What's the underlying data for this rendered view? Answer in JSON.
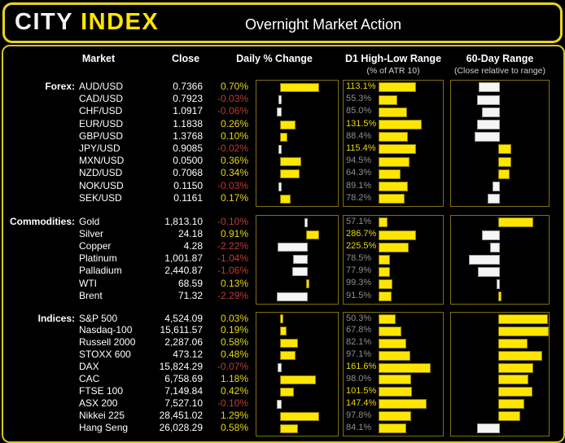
{
  "header": {
    "logo_part1": "CITY",
    "logo_part2": "INDEX",
    "title": "Overnight Market Action"
  },
  "columns": {
    "market": "Market",
    "close": "Close",
    "daily_change": "Daily % Change",
    "d1_range": "D1 High-Low Range",
    "d1_range_sub": "(% of ATR 10)",
    "range60": "60-Day Range",
    "range60_sub": "(Close relative to range)"
  },
  "colors": {
    "accent_yellow": "#ffe600",
    "text_yellow": "#e9d80a",
    "negative_red": "#bf3a34",
    "bar_white": "#f5f5f5",
    "muted_gray": "#8f8f8f",
    "box_border": "#7f7011"
  },
  "chart_data": [
    {
      "type": "bar",
      "group_label": "Forex:",
      "d1_axis_max": 200,
      "rows": [
        {
          "market": "AUD/USD",
          "close": "0.7366",
          "daily_pct": 0.7,
          "d1_atr_pct": 113.1,
          "range60_pct": 30
        },
        {
          "market": "CAD/USD",
          "close": "0.7923",
          "daily_pct": -0.03,
          "d1_atr_pct": 55.3,
          "range60_pct": 28
        },
        {
          "market": "CHF/USD",
          "close": "1.0917",
          "daily_pct": -0.06,
          "d1_atr_pct": 85.0,
          "range60_pct": 33
        },
        {
          "market": "EUR/USD",
          "close": "1.1838",
          "daily_pct": 0.26,
          "d1_atr_pct": 131.5,
          "range60_pct": 28
        },
        {
          "market": "GBP/USD",
          "close": "1.3768",
          "daily_pct": 0.1,
          "d1_atr_pct": 88.4,
          "range60_pct": 26
        },
        {
          "market": "JPY/USD",
          "close": "0.9085",
          "daily_pct": -0.02,
          "d1_atr_pct": 115.4,
          "range60_pct": 62
        },
        {
          "market": "MXN/USD",
          "close": "0.0500",
          "daily_pct": 0.36,
          "d1_atr_pct": 94.5,
          "range60_pct": 62
        },
        {
          "market": "NZD/USD",
          "close": "0.7068",
          "daily_pct": 0.34,
          "d1_atr_pct": 64.3,
          "range60_pct": 60
        },
        {
          "market": "NOK/USD",
          "close": "0.1150",
          "daily_pct": -0.03,
          "d1_atr_pct": 89.1,
          "range60_pct": 44
        },
        {
          "market": "SEK/USD",
          "close": "0.1161",
          "daily_pct": 0.17,
          "d1_atr_pct": 78.2,
          "range60_pct": 39
        }
      ]
    },
    {
      "type": "bar",
      "group_label": "Commodities:",
      "d1_axis_max": 500,
      "rows": [
        {
          "market": "Gold",
          "close": "1,813.10",
          "daily_pct": -0.1,
          "d1_atr_pct": 57.1,
          "range60_pct": 84
        },
        {
          "market": "Silver",
          "close": "24.18",
          "daily_pct": 0.91,
          "d1_atr_pct": 286.7,
          "range60_pct": 33
        },
        {
          "market": "Copper",
          "close": "4.28",
          "daily_pct": -2.22,
          "d1_atr_pct": 225.5,
          "range60_pct": 42
        },
        {
          "market": "Platinum",
          "close": "1,001.87",
          "daily_pct": -1.04,
          "d1_atr_pct": 78.5,
          "range60_pct": 20
        },
        {
          "market": "Palladium",
          "close": "2,440.87",
          "daily_pct": -1.06,
          "d1_atr_pct": 77.9,
          "range60_pct": 29
        },
        {
          "market": "WTI",
          "close": "68.59",
          "daily_pct": 0.13,
          "d1_atr_pct": 99.3,
          "range60_pct": 49
        },
        {
          "market": "Brent",
          "close": "71.32",
          "daily_pct": -2.29,
          "d1_atr_pct": 91.5,
          "range60_pct": 51
        }
      ]
    },
    {
      "type": "bar",
      "group_label": "Indices:",
      "d1_axis_max": 200,
      "rows": [
        {
          "market": "S&P 500",
          "close": "4,524.09",
          "daily_pct": 0.03,
          "d1_atr_pct": 50.3,
          "range60_pct": 99
        },
        {
          "market": "Nasdaq-100",
          "close": "15,611.57",
          "daily_pct": 0.19,
          "d1_atr_pct": 67.8,
          "range60_pct": 100
        },
        {
          "market": "Russell 2000",
          "close": "2,287.06",
          "daily_pct": 0.58,
          "d1_atr_pct": 82.1,
          "range60_pct": 78
        },
        {
          "market": "STOXX 600",
          "close": "473.12",
          "daily_pct": 0.48,
          "d1_atr_pct": 97.1,
          "range60_pct": 93
        },
        {
          "market": "DAX",
          "close": "15,824.29",
          "daily_pct": -0.07,
          "d1_atr_pct": 161.6,
          "range60_pct": 84
        },
        {
          "market": "CAC",
          "close": "6,758.69",
          "daily_pct": 1.18,
          "d1_atr_pct": 98.0,
          "range60_pct": 79
        },
        {
          "market": "FTSE 100",
          "close": "7,149.84",
          "daily_pct": 0.42,
          "d1_atr_pct": 101.5,
          "range60_pct": 83
        },
        {
          "market": "ASX 200",
          "close": "7,527.10",
          "daily_pct": -0.1,
          "d1_atr_pct": 147.4,
          "range60_pct": 75
        },
        {
          "market": "Nikkei 225",
          "close": "28,451.02",
          "daily_pct": 1.29,
          "d1_atr_pct": 97.8,
          "range60_pct": 71
        },
        {
          "market": "Hang Seng",
          "close": "26,028.29",
          "daily_pct": 0.58,
          "d1_atr_pct": 84.1,
          "range60_pct": 28
        }
      ]
    }
  ]
}
